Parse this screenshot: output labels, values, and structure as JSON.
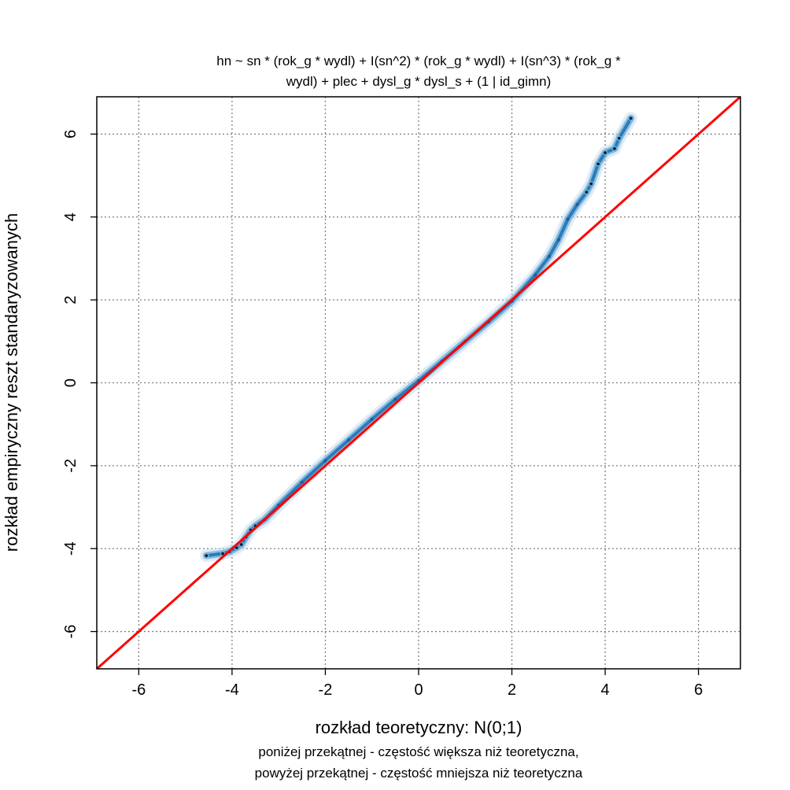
{
  "chart_data": {
    "type": "scatter",
    "title_lines": [
      "hn ~ sn * (rok_g * wydl) + I(sn^2) * (rok_g * wydl) + I(sn^3) * (rok_g *",
      "wydl) + plec + dysl_g * dysl_s + (1 | id_gimn)"
    ],
    "xlabel": "rozkład teoretyczny: N(0;1)",
    "ylabel": "rozkład empiryczny reszt standaryzowanych",
    "subtitle_lines": [
      "poniżej przekątnej - częstość większa niż teoretyczna,",
      "powyżej przekątnej - częstość mniejsza niż teoretyczna"
    ],
    "xlim": [
      -6.9,
      6.9
    ],
    "ylim": [
      -6.9,
      6.9
    ],
    "x_ticks": [
      -6,
      -4,
      -2,
      0,
      2,
      4,
      6
    ],
    "y_ticks": [
      -6,
      -4,
      -2,
      0,
      2,
      4,
      6
    ],
    "grid": true,
    "reference_line": {
      "slope": 1,
      "intercept": 0,
      "color": "#ff0000"
    },
    "point_color": "#2b7bba",
    "series": [
      {
        "points": [
          [
            -4.55,
            -4.17
          ],
          [
            -4.2,
            -4.12
          ],
          [
            -4.05,
            -4.07
          ],
          [
            -3.9,
            -3.98
          ],
          [
            -3.8,
            -3.9
          ],
          [
            -3.7,
            -3.72
          ],
          [
            -3.6,
            -3.55
          ],
          [
            -3.5,
            -3.45
          ],
          [
            -3.3,
            -3.3
          ],
          [
            -3.0,
            -2.95
          ],
          [
            -2.5,
            -2.4
          ],
          [
            -2.0,
            -1.88
          ],
          [
            -1.5,
            -1.38
          ],
          [
            -1.0,
            -0.88
          ],
          [
            -0.5,
            -0.4
          ],
          [
            0.0,
            0.05
          ],
          [
            0.5,
            0.52
          ],
          [
            1.0,
            1.0
          ],
          [
            1.5,
            1.47
          ],
          [
            2.0,
            1.97
          ],
          [
            2.5,
            2.6
          ],
          [
            2.8,
            3.05
          ],
          [
            3.0,
            3.45
          ],
          [
            3.2,
            3.95
          ],
          [
            3.4,
            4.3
          ],
          [
            3.6,
            4.6
          ],
          [
            3.7,
            4.8
          ],
          [
            3.85,
            5.28
          ],
          [
            4.0,
            5.55
          ],
          [
            4.2,
            5.65
          ],
          [
            4.3,
            5.9
          ],
          [
            4.55,
            6.38
          ]
        ]
      }
    ]
  }
}
